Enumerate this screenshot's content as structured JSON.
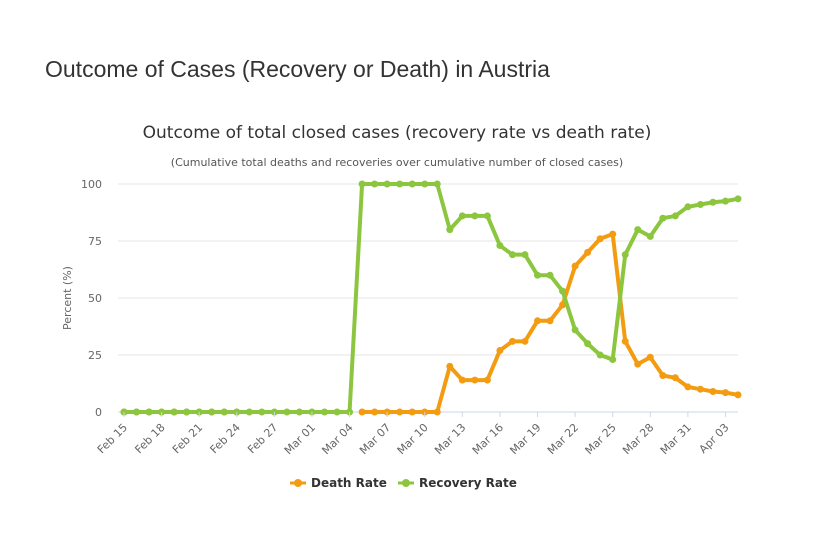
{
  "page": {
    "title": "Outcome of Cases (Recovery or Death) in Austria"
  },
  "chart_data": {
    "type": "line",
    "title": "Outcome of total closed cases (recovery rate vs death rate)",
    "subtitle": "(Cumulative total deaths and recoveries over cumulative number of closed cases)",
    "xlabel": "",
    "ylabel": "Percent (%)",
    "ylim": [
      0,
      100
    ],
    "yticks": [
      0,
      25,
      50,
      75,
      100
    ],
    "grid": true,
    "legend_position": "bottom-center",
    "colors": {
      "death": "#f39c12",
      "recovery": "#8cc63f",
      "grid": "#e6e6e6",
      "axis": "#ccd6eb",
      "text": "#666666"
    },
    "tick_labels": [
      "Feb 15",
      "Feb 18",
      "Feb 21",
      "Feb 24",
      "Feb 27",
      "Mar 01",
      "Mar 04",
      "Mar 07",
      "Mar 10",
      "Mar 13",
      "Mar 16",
      "Mar 19",
      "Mar 22",
      "Mar 25",
      "Mar 28",
      "Mar 31",
      "Apr 03"
    ],
    "x": [
      "Feb 15",
      "Feb 16",
      "Feb 17",
      "Feb 18",
      "Feb 19",
      "Feb 20",
      "Feb 21",
      "Feb 22",
      "Feb 23",
      "Feb 24",
      "Feb 25",
      "Feb 26",
      "Feb 27",
      "Feb 28",
      "Feb 29",
      "Mar 01",
      "Mar 02",
      "Mar 03",
      "Mar 04",
      "Mar 05",
      "Mar 06",
      "Mar 07",
      "Mar 08",
      "Mar 09",
      "Mar 10",
      "Mar 11",
      "Mar 12",
      "Mar 13",
      "Mar 14",
      "Mar 15",
      "Mar 16",
      "Mar 17",
      "Mar 18",
      "Mar 19",
      "Mar 20",
      "Mar 21",
      "Mar 22",
      "Mar 23",
      "Mar 24",
      "Mar 25",
      "Mar 26",
      "Mar 27",
      "Mar 28",
      "Mar 29",
      "Mar 30",
      "Mar 31",
      "Apr 01",
      "Apr 02",
      "Apr 03",
      "Apr 04"
    ],
    "series": [
      {
        "name": "Death Rate",
        "key": "death",
        "values": [
          0,
          0,
          0,
          0,
          0,
          0,
          0,
          0,
          0,
          0,
          null,
          null,
          null,
          null,
          null,
          null,
          null,
          null,
          null,
          0,
          0,
          0,
          0,
          0,
          0,
          0,
          20,
          14,
          14,
          14,
          27,
          31,
          31,
          40,
          40,
          47,
          64,
          70,
          76,
          78,
          31,
          21,
          24,
          16,
          15,
          11,
          10,
          9,
          8.5,
          7.5
        ]
      },
      {
        "name": "Recovery Rate",
        "key": "recovery",
        "values": [
          0,
          0,
          0,
          0,
          0,
          0,
          0,
          0,
          0,
          0,
          0,
          0,
          0,
          0,
          0,
          0,
          0,
          0,
          0,
          100,
          100,
          100,
          100,
          100,
          100,
          100,
          80,
          86,
          86,
          86,
          73,
          69,
          69,
          60,
          60,
          53,
          36,
          30,
          25,
          23,
          69,
          80,
          77,
          85,
          86,
          90,
          91,
          92,
          92.5,
          93.5
        ]
      }
    ]
  }
}
